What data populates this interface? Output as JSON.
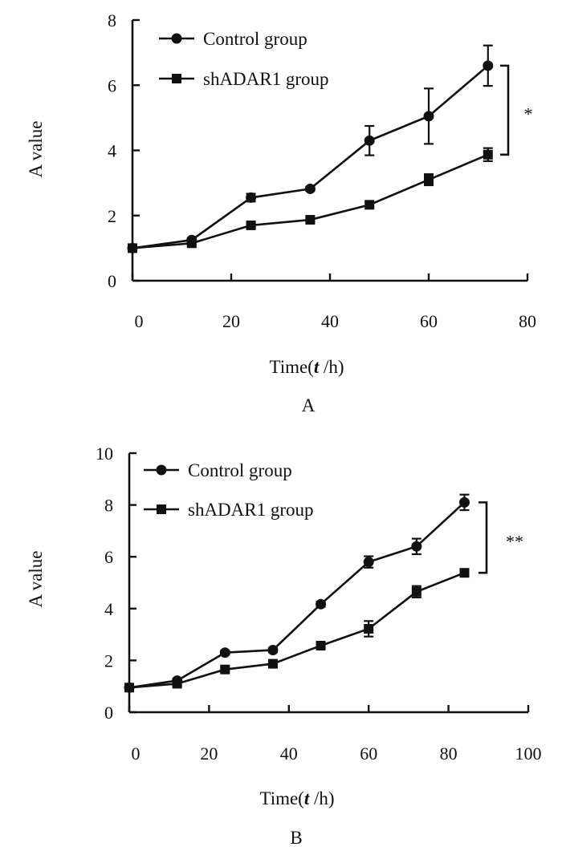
{
  "chart_data": [
    {
      "type": "line",
      "panel_label": "A",
      "xlabel_prefix": "Time(",
      "xlabel_var": "t",
      "xlabel_suffix": " /h)",
      "ylabel": "A value",
      "xlim": [
        0,
        80
      ],
      "ylim": [
        0,
        8
      ],
      "xticks": [
        0,
        20,
        40,
        60,
        80
      ],
      "yticks": [
        0,
        2,
        4,
        6,
        8
      ],
      "legend_position": "top-left",
      "significance": "*",
      "series": [
        {
          "name": "Control group",
          "marker": "circle",
          "x": [
            0,
            12,
            24,
            36,
            48,
            60,
            72
          ],
          "values": [
            1.0,
            1.25,
            2.55,
            2.82,
            4.3,
            5.05,
            6.6
          ],
          "errors": [
            0.08,
            0.06,
            0.12,
            0.06,
            0.45,
            0.85,
            0.62
          ]
        },
        {
          "name": "shADAR1  group",
          "marker": "square",
          "x": [
            0,
            12,
            24,
            36,
            48,
            60,
            72
          ],
          "values": [
            1.0,
            1.15,
            1.7,
            1.87,
            2.33,
            3.1,
            3.87
          ],
          "errors": [
            0.06,
            0.05,
            0.06,
            0.06,
            0.07,
            0.17,
            0.2
          ]
        }
      ]
    },
    {
      "type": "line",
      "panel_label": "B",
      "xlabel_prefix": "Time(",
      "xlabel_var": "t",
      "xlabel_suffix": " /h)",
      "ylabel": "A value",
      "xlim": [
        0,
        100
      ],
      "ylim": [
        0,
        10
      ],
      "xticks": [
        0,
        20,
        40,
        60,
        80,
        100
      ],
      "yticks": [
        0,
        2,
        4,
        6,
        8,
        10
      ],
      "legend_position": "top-left",
      "significance": "**",
      "series": [
        {
          "name": "Control group",
          "marker": "circle",
          "x": [
            0,
            12,
            24,
            36,
            48,
            60,
            72,
            84
          ],
          "values": [
            0.95,
            1.22,
            2.3,
            2.4,
            4.17,
            5.8,
            6.4,
            8.1
          ],
          "errors": [
            0.06,
            0.08,
            0.08,
            0.08,
            0.1,
            0.22,
            0.3,
            0.3
          ]
        },
        {
          "name": "shADAR1  group",
          "marker": "square",
          "x": [
            0,
            12,
            24,
            36,
            48,
            60,
            72,
            84
          ],
          "values": [
            0.95,
            1.1,
            1.65,
            1.87,
            2.57,
            3.22,
            4.65,
            5.38
          ],
          "errors": [
            0.06,
            0.06,
            0.08,
            0.08,
            0.08,
            0.3,
            0.22,
            0.1
          ]
        }
      ]
    }
  ]
}
